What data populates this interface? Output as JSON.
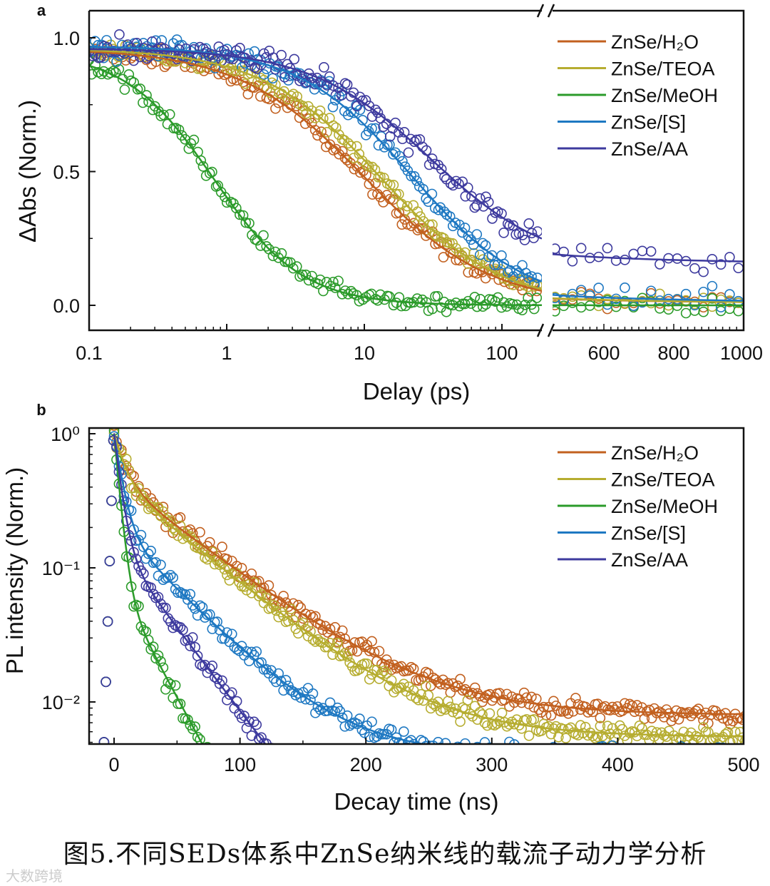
{
  "chart_data": [
    {
      "type": "scatter",
      "panel_label": "a",
      "xlabel": "Delay (ps)",
      "ylabel": "ΔAbs (Norm.)",
      "x_scale": "log with axis break",
      "xlim_left": [
        0.1,
        195
      ],
      "xlim_right": [
        450,
        1000
      ],
      "ylim": [
        -0.1,
        1.1
      ],
      "x_ticks_left": [
        "0.1",
        "1",
        "10",
        "100"
      ],
      "x_tick_values_left": [
        0.1,
        1,
        10,
        100
      ],
      "x_ticks_right": [
        "600",
        "800",
        "1000"
      ],
      "x_tick_values_right": [
        600,
        800,
        1000
      ],
      "y_ticks": [
        "0.0",
        "0.5",
        "1.0"
      ],
      "y_tick_values": [
        0,
        0.5,
        1.0
      ],
      "legend_position": "top-right",
      "fit_model": "y = A/(1+(t/tau)^n) + c",
      "series": [
        {
          "name": "ZnSe/H₂O",
          "color": "#c2601f",
          "A": 0.96,
          "tau": 10,
          "n": 0.95,
          "c": 0.0,
          "noise": 0.03
        },
        {
          "name": "ZnSe/TEOA",
          "color": "#b6ad30",
          "A": 0.96,
          "tau": 13,
          "n": 1.0,
          "c": 0.0,
          "noise": 0.03
        },
        {
          "name": "ZnSe/MeOH",
          "color": "#2b9b2a",
          "A": 0.95,
          "tau": 0.8,
          "n": 1.35,
          "c": 0.0,
          "noise": 0.03
        },
        {
          "name": "ZnSe/[S]",
          "color": "#1e78c2",
          "A": 0.97,
          "tau": 22,
          "n": 1.05,
          "c": 0.0,
          "noise": 0.04
        },
        {
          "name": "ZnSe/AA",
          "color": "#3d3a9e",
          "A": 0.82,
          "tau": 30,
          "n": 1.0,
          "c": 0.14,
          "noise": 0.04
        }
      ]
    },
    {
      "type": "scatter",
      "panel_label": "b",
      "xlabel": "Decay time (ns)",
      "ylabel": "PL intensity (Norm.)",
      "y_scale": "log",
      "xlim": [
        -20,
        500
      ],
      "ylim": [
        0.0049,
        1.1
      ],
      "x_ticks": [
        "0",
        "100",
        "200",
        "300",
        "400",
        "500"
      ],
      "x_tick_values": [
        0,
        100,
        200,
        300,
        400,
        500
      ],
      "y_ticks": [
        "10⁰",
        "10⁻¹",
        "10⁻²"
      ],
      "y_tick_values": [
        1,
        0.1,
        0.01
      ],
      "legend_position": "top-right",
      "fit_model": "y = A1*exp(-t/tau1) + A2*exp(-t/tau2) + c",
      "series": [
        {
          "name": "ZnSe/H₂O",
          "color": "#c2601f",
          "A1": 0.55,
          "tau1": 8,
          "A2": 0.45,
          "tau2": 60,
          "c": 0.008
        },
        {
          "name": "ZnSe/TEOA",
          "color": "#b6ad30",
          "A1": 0.55,
          "tau1": 8,
          "A2": 0.45,
          "tau2": 55,
          "c": 0.0055
        },
        {
          "name": "ZnSe/MeOH",
          "color": "#2b9b2a",
          "A1": 0.92,
          "tau1": 4,
          "A2": 0.08,
          "tau2": 25,
          "c": 0.0
        },
        {
          "name": "ZnSe/[S]",
          "color": "#1e78c2",
          "A1": 0.8,
          "tau1": 6,
          "A2": 0.2,
          "tau2": 45,
          "c": 0.004
        },
        {
          "name": "ZnSe/AA",
          "color": "#3d3a9e",
          "A1": 0.85,
          "tau1": 5,
          "A2": 0.15,
          "tau2": 35,
          "c": 0.0
        }
      ]
    }
  ],
  "caption": "图5.不同SEDs体系中ZnSe纳米线的载流子动力学分析",
  "watermark": "大数跨境"
}
